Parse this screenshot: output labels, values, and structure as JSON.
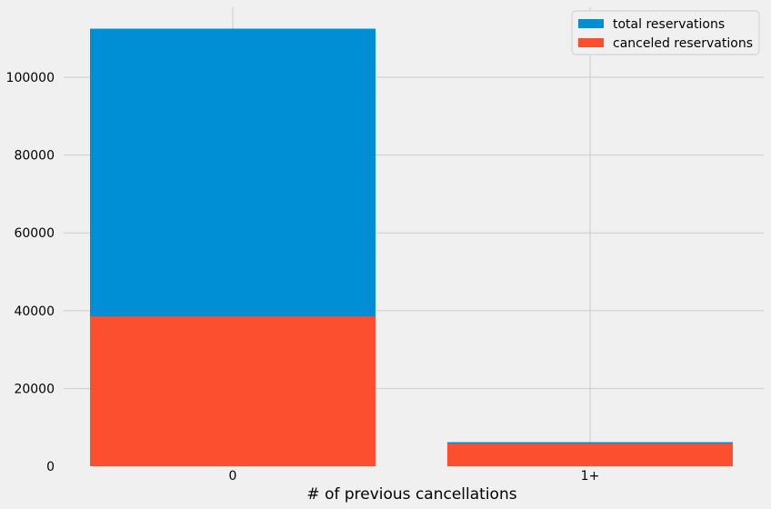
{
  "chart_data": {
    "type": "bar",
    "categories": [
      "0",
      "1+"
    ],
    "series": [
      {
        "name": "total reservations",
        "values": [
          112500,
          6200
        ],
        "color": "#008fd5"
      },
      {
        "name": "canceled reservations",
        "values": [
          38500,
          5800
        ],
        "color": "#fc4f30"
      }
    ],
    "xlabel": "# of previous cancellations",
    "ylabel": "",
    "ylim": [
      0,
      118000
    ],
    "yticks": [
      0,
      20000,
      40000,
      60000,
      80000,
      100000
    ],
    "ytick_labels": [
      "0",
      "20000",
      "40000",
      "60000",
      "80000",
      "100000"
    ],
    "grid": true,
    "legend_position": "top-right",
    "background": "#f0f0f0",
    "grid_color": "#cbcbcb"
  }
}
